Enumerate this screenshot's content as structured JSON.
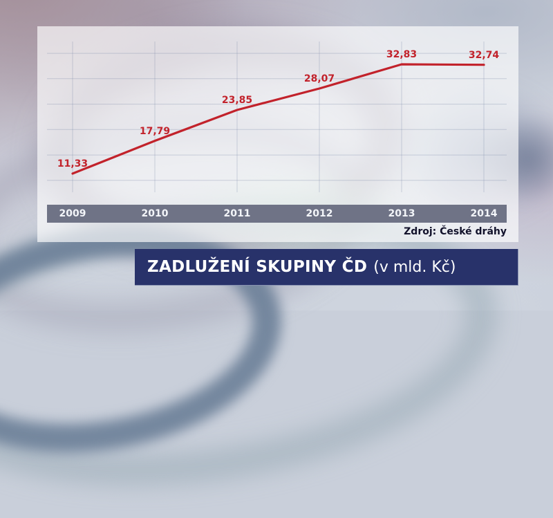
{
  "chart_data": {
    "type": "line",
    "title": "ZADLUŽENÍ SKUPINY ČD",
    "title_units": "(v mld. Kč)",
    "source": "Zdroj: České dráhy",
    "categories": [
      "2009",
      "2010",
      "2011",
      "2012",
      "2013",
      "2014"
    ],
    "series": [
      {
        "name": "Zadlužení skupiny ČD (v mld. Kč)",
        "values": [
          11.33,
          17.79,
          23.85,
          28.07,
          32.83,
          32.74
        ]
      }
    ],
    "value_labels": [
      "11,33",
      "17,79",
      "23,85",
      "28,07",
      "32,83",
      "32,74"
    ],
    "xlabel": "",
    "ylabel": "",
    "ylim": [
      5,
      37
    ],
    "gridline_values": [
      10,
      15,
      20,
      25,
      30,
      35
    ],
    "grid": true,
    "legend_position": "none",
    "line_color": "#c2222b",
    "label_color": "#c2222b",
    "axis_band_color": "#6f7386",
    "title_bar_color": "#28326a",
    "source_color": "#12122b"
  }
}
